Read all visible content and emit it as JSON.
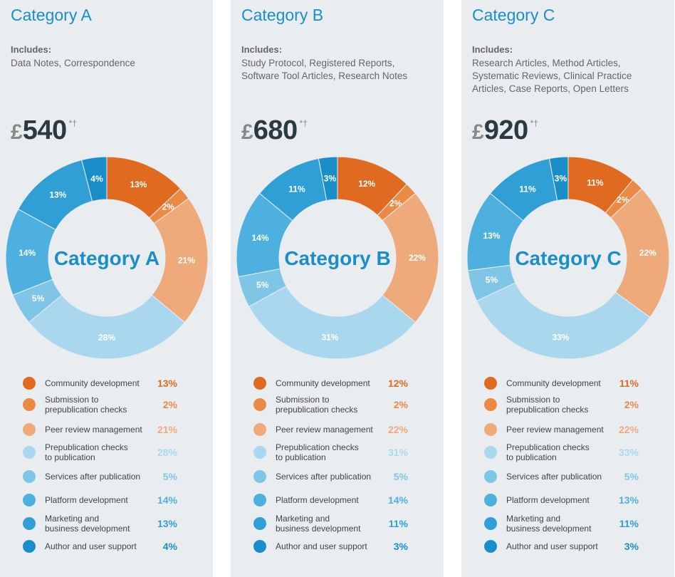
{
  "categories_legend": [
    {
      "label": "Community development",
      "color": "#e06a1f"
    },
    {
      "label": "Submission to\nprepublication checks",
      "color": "#ea8a45"
    },
    {
      "label": "Peer review management",
      "color": "#eeaa7a"
    },
    {
      "label": "Prepublication checks\nto publication",
      "color": "#a9d8ee"
    },
    {
      "label": "Services after publication",
      "color": "#7fc6e6"
    },
    {
      "label": "Platform development",
      "color": "#4eb0de"
    },
    {
      "label": "Marketing and\nbusiness development",
      "color": "#2f9fd6"
    },
    {
      "label": "Author and user support",
      "color": "#1a8ec8"
    }
  ],
  "pct_text_colors": [
    "#e06a1f",
    "#ea8a45",
    "#eeaa7a",
    "#a9d8ee",
    "#7fc6e6",
    "#4eb0de",
    "#2f9fd6",
    "#1a8ec8"
  ],
  "panels": [
    {
      "title": "Category A",
      "includes_label": "Includes:",
      "includes": "Data Notes, Correspondence",
      "currency": "£",
      "price": "540",
      "price_marks": "*†",
      "center_label": "Category A"
    },
    {
      "title": "Category B",
      "includes_label": "Includes:",
      "includes": "Study Protocol, Registered Reports,\nSoftware Tool Articles, Research Notes",
      "currency": "£",
      "price": "680",
      "price_marks": "*†",
      "center_label": "Category B"
    },
    {
      "title": "Category C",
      "includes_label": "Includes:",
      "includes": "Research Articles, Method Articles,\nSystematic Reviews, Clinical Practice\nArticles, Case Reports, Open Letters",
      "currency": "£",
      "price": "920",
      "price_marks": "*†",
      "center_label": "Category C"
    }
  ],
  "chart_data": [
    {
      "type": "pie",
      "donut": true,
      "title": "Category A",
      "labels": [
        "Community development",
        "Submission to prepublication checks",
        "Peer review management",
        "Prepublication checks to publication",
        "Services after publication",
        "Platform development",
        "Marketing and business development",
        "Author and user support"
      ],
      "values": [
        13,
        2,
        21,
        28,
        5,
        14,
        13,
        4
      ],
      "unit": "%"
    },
    {
      "type": "pie",
      "donut": true,
      "title": "Category B",
      "labels": [
        "Community development",
        "Submission to prepublication checks",
        "Peer review management",
        "Prepublication checks to publication",
        "Services after publication",
        "Platform development",
        "Marketing and business development",
        "Author and user support"
      ],
      "values": [
        12,
        2,
        22,
        31,
        5,
        14,
        11,
        3
      ],
      "unit": "%"
    },
    {
      "type": "pie",
      "donut": true,
      "title": "Category C",
      "labels": [
        "Community development",
        "Submission to prepublication checks",
        "Peer review management",
        "Prepublication checks to publication",
        "Services after publication",
        "Platform development",
        "Marketing and business development",
        "Author and user support"
      ],
      "values": [
        11,
        2,
        22,
        33,
        5,
        13,
        11,
        3
      ],
      "unit": "%"
    }
  ]
}
